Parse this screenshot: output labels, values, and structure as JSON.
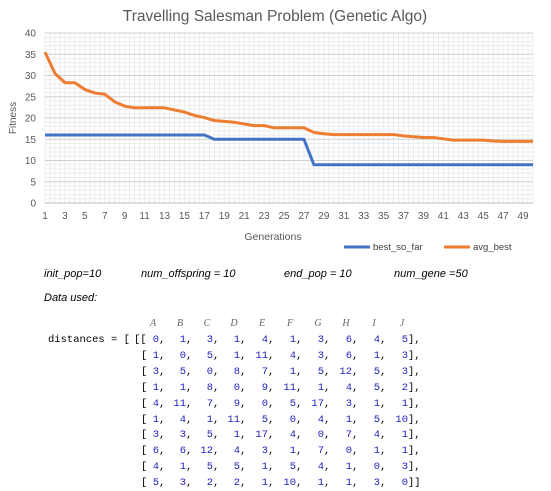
{
  "chart_data": {
    "type": "line",
    "title": "Travelling Salesman Problem (Genetic Algo)",
    "xlabel": "Generations",
    "ylabel": "Fitness",
    "ylim": [
      0,
      40
    ],
    "yticks": [
      "0",
      "5",
      "10",
      "15",
      "20",
      "25",
      "30",
      "35",
      "40"
    ],
    "x": [
      1,
      2,
      3,
      4,
      5,
      6,
      7,
      8,
      9,
      10,
      11,
      12,
      13,
      14,
      15,
      16,
      17,
      18,
      19,
      20,
      21,
      22,
      23,
      24,
      25,
      26,
      27,
      28,
      29,
      30,
      31,
      32,
      33,
      34,
      35,
      36,
      37,
      38,
      39,
      40,
      41,
      42,
      43,
      44,
      45,
      46,
      47,
      48,
      49,
      50
    ],
    "xtick_labels": [
      "1",
      "3",
      "5",
      "7",
      "9",
      "11",
      "13",
      "15",
      "17",
      "19",
      "21",
      "23",
      "25",
      "27",
      "29",
      "31",
      "33",
      "35",
      "37",
      "39",
      "41",
      "43",
      "45",
      "47",
      "49"
    ],
    "grid": true,
    "legend_position": "bottom-right",
    "series": [
      {
        "name": "best_so_far",
        "color": "#4472C4",
        "values": [
          16,
          16,
          16,
          16,
          16,
          16,
          16,
          16,
          16,
          16,
          16,
          16,
          16,
          16,
          16,
          16,
          16,
          15,
          15,
          15,
          15,
          15,
          15,
          15,
          15,
          15,
          15,
          9,
          9,
          9,
          9,
          9,
          9,
          9,
          9,
          9,
          9,
          9,
          9,
          9,
          9,
          9,
          9,
          9,
          9,
          9,
          9,
          9,
          9,
          9
        ]
      },
      {
        "name": "avg_best",
        "color": "#ED7D31",
        "values": [
          35.5,
          30.5,
          28.3,
          28.3,
          26.7,
          25.9,
          25.6,
          23.8,
          22.8,
          22.4,
          22.4,
          22.4,
          22.4,
          21.9,
          21.4,
          20.6,
          20.1,
          19.4,
          19.2,
          19.0,
          18.6,
          18.2,
          18.2,
          17.7,
          17.7,
          17.7,
          17.7,
          16.6,
          16.3,
          16.1,
          16.1,
          16.1,
          16.1,
          16.1,
          16.1,
          16.1,
          15.8,
          15.6,
          15.4,
          15.4,
          15.1,
          14.8,
          14.8,
          14.8,
          14.8,
          14.6,
          14.5,
          14.5,
          14.5,
          14.5
        ]
      }
    ]
  },
  "params": {
    "init_pop": "init_pop=10",
    "num_offspring": "num_offspring = 10",
    "end_pop": "end_pop = 10",
    "num_gene": "num_gene =50"
  },
  "data_used_label": "Data used:",
  "matrix": {
    "variable": "distances = [",
    "columns": [
      "A",
      "B",
      "C",
      "D",
      "E",
      "F",
      "G",
      "H",
      "I",
      "J"
    ],
    "rows": [
      [
        0,
        1,
        3,
        1,
        4,
        1,
        3,
        6,
        4,
        5
      ],
      [
        1,
        0,
        5,
        1,
        11,
        4,
        3,
        6,
        1,
        3
      ],
      [
        3,
        5,
        0,
        8,
        7,
        1,
        5,
        12,
        5,
        3
      ],
      [
        1,
        1,
        8,
        0,
        9,
        11,
        1,
        4,
        5,
        2
      ],
      [
        4,
        11,
        7,
        9,
        0,
        5,
        17,
        3,
        1,
        1
      ],
      [
        1,
        4,
        1,
        11,
        5,
        0,
        4,
        1,
        5,
        10
      ],
      [
        3,
        3,
        5,
        1,
        17,
        4,
        0,
        7,
        4,
        1
      ],
      [
        6,
        6,
        12,
        4,
        3,
        1,
        7,
        0,
        1,
        1
      ],
      [
        4,
        1,
        5,
        5,
        1,
        5,
        4,
        1,
        0,
        3
      ],
      [
        5,
        3,
        2,
        2,
        1,
        10,
        1,
        1,
        3,
        0
      ]
    ]
  }
}
